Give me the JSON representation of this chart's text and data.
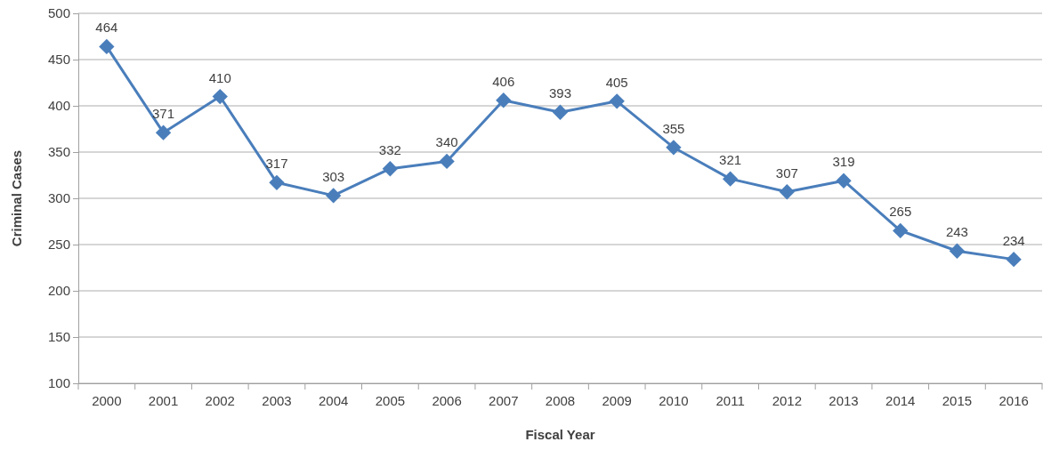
{
  "chart_data": {
    "type": "line",
    "xlabel": "Fiscal Year",
    "ylabel": "Criminal Cases",
    "categories": [
      "2000",
      "2001",
      "2002",
      "2003",
      "2004",
      "2005",
      "2006",
      "2007",
      "2008",
      "2009",
      "2010",
      "2011",
      "2012",
      "2013",
      "2014",
      "2015",
      "2016"
    ],
    "series": [
      {
        "color": "#4a7ebb",
        "values": [
          464,
          371,
          410,
          317,
          303,
          332,
          340,
          406,
          393,
          405,
          355,
          321,
          307,
          319,
          265,
          243,
          234
        ]
      }
    ],
    "ylim": [
      100,
      500
    ],
    "yticks": [
      100,
      150,
      200,
      250,
      300,
      350,
      400,
      450,
      500
    ],
    "grid": "y",
    "marker": "diamond",
    "line_style": "solid",
    "data_labels": true
  }
}
